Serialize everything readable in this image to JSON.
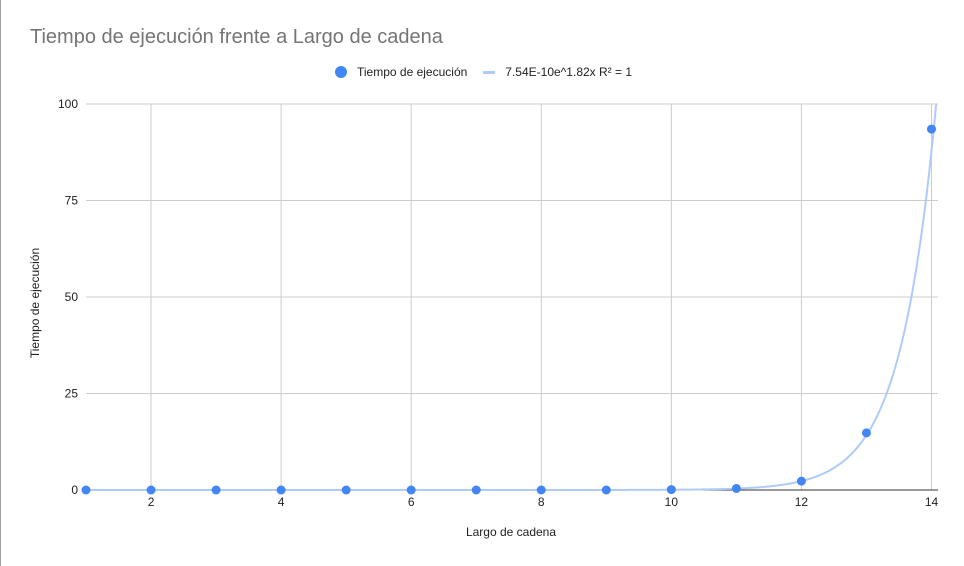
{
  "chart_data": {
    "type": "scatter",
    "title": "Tiempo de ejecución frente a Largo de cadena",
    "xlabel": "Largo de cadena",
    "ylabel": "Tiempo de ejecución",
    "xlim": [
      1,
      14.1
    ],
    "ylim": [
      0,
      100
    ],
    "xticks": [
      2,
      4,
      6,
      8,
      10,
      12,
      14
    ],
    "yticks": [
      0,
      25,
      50,
      75,
      100
    ],
    "grid": true,
    "legend_position": "top",
    "series": [
      {
        "name": "Tiempo de ejecución",
        "color": "#4285f4",
        "x": [
          1,
          2,
          3,
          4,
          5,
          6,
          7,
          8,
          9,
          10,
          11,
          12,
          13,
          14
        ],
        "y": [
          0,
          0,
          0,
          0,
          0,
          0,
          0,
          0,
          0,
          0.1,
          0.4,
          2.3,
          14.8,
          93.5
        ]
      }
    ],
    "trendline": {
      "name": "7.54E-10e^1.82x R² = 1",
      "type": "exponential",
      "a": 7.54e-10,
      "b": 1.82,
      "color": "#aecbfa"
    }
  }
}
